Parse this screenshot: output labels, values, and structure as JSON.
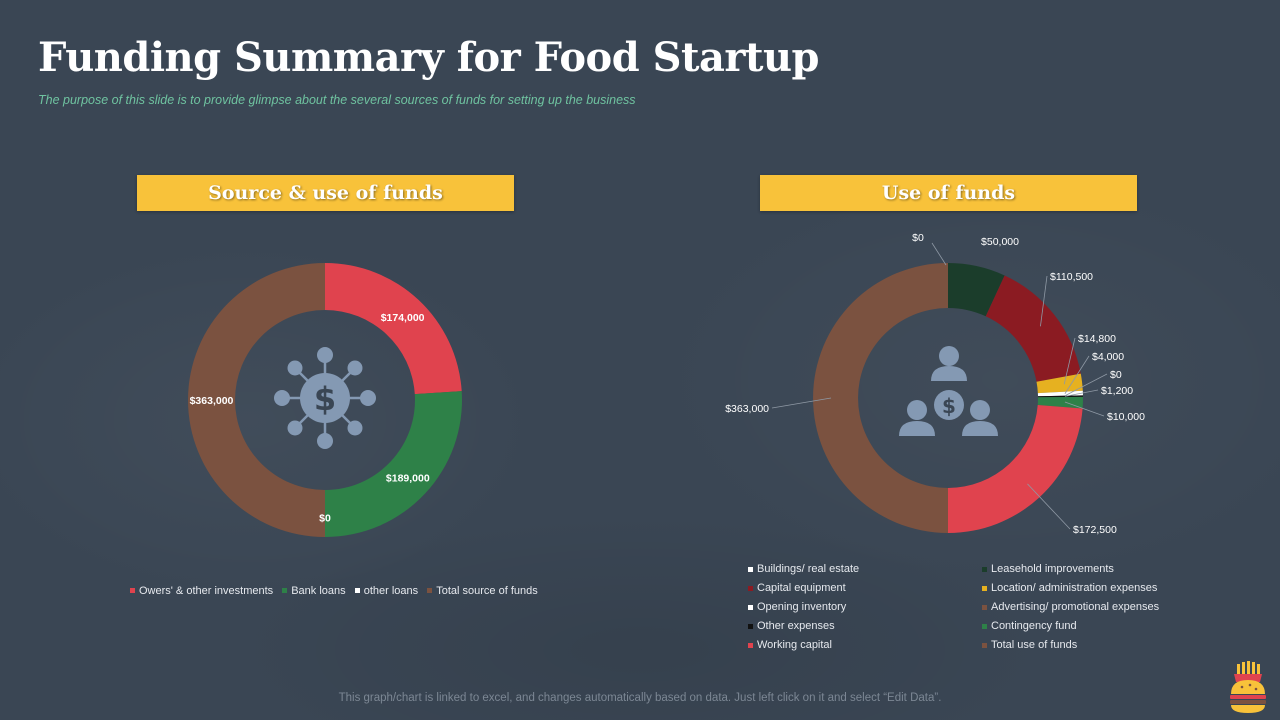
{
  "header": {
    "title": "Funding Summary for Food Startup",
    "subtitle": "The purpose  of this slide is to provide  glimpse  about the several  sources of funds for setting up the business"
  },
  "footer": {
    "note": "This graph/chart is linked to excel,  and changes automatically based on data. Just left click on it and select “Edit Data”."
  },
  "icons": {
    "left_center": "money-network-icon",
    "right_center": "people-money-icon",
    "logo": "burger-fries-icon"
  },
  "colors": {
    "banner": "#f8c23a",
    "background": "#3a4654",
    "subtitle": "#6fc3a0"
  },
  "chart_data": [
    {
      "type": "pie",
      "title": "Source & use of funds",
      "donut": true,
      "categories": [
        "Owers' & other investments",
        "Bank loans",
        "other loans",
        "Total source of funds"
      ],
      "values": [
        174000,
        189000,
        0,
        363000
      ],
      "labels": [
        "$174,000",
        "$189,000",
        "$0",
        "$363,000"
      ],
      "colors": [
        "#e0434e",
        "#2e8148",
        "#ffffff",
        "#7b5240"
      ],
      "legend_position": "bottom"
    },
    {
      "type": "pie",
      "title": "Use of funds",
      "donut": true,
      "categories": [
        "Buildings/ real estate",
        "Leasehold improvements",
        "Capital equipment",
        "Location/ administration expenses",
        "Opening inventory",
        "Advertising/ promotional expenses",
        "Other expenses",
        "Contingency fund",
        "Working capital",
        "Total use of funds"
      ],
      "values": [
        0,
        50000,
        110500,
        14800,
        4000,
        0,
        1200,
        10000,
        172500,
        363000
      ],
      "labels": [
        "$0",
        "$50,000",
        "$110,500",
        "$14,800",
        "$4,000",
        "$0",
        "$1,200",
        "$10,000",
        "$172,500",
        "$363,000"
      ],
      "colors": [
        "#ffffff",
        "#1b3d2b",
        "#8b1b22",
        "#e6b120",
        "#ffffff",
        "#7b5240",
        "#111111",
        "#2e8148",
        "#e0434e",
        "#7b5240"
      ],
      "legend_position": "bottom"
    }
  ]
}
